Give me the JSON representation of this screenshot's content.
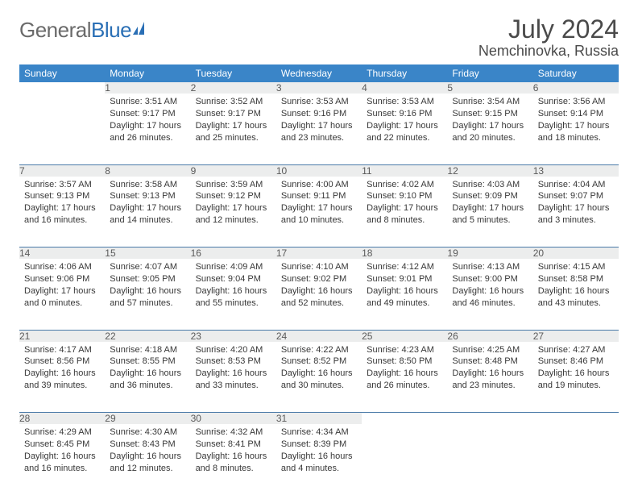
{
  "logo": {
    "text1": "General",
    "text2": "Blue"
  },
  "title": "July 2024",
  "location": "Nemchinovka, Russia",
  "colors": {
    "header_bg": "#3a85c8",
    "header_text": "#ffffff",
    "daynum_bg": "#eceded",
    "daynum_text": "#5a5a5a",
    "body_text": "#383838",
    "rule": "#4a7aa8",
    "logo_gray": "#6a6a6a",
    "logo_blue": "#2a6fb5",
    "title_text": "#4a4a4a",
    "page_bg": "#ffffff"
  },
  "fonts": {
    "family": "Arial, Helvetica, sans-serif",
    "month_title_size": 32,
    "location_size": 18,
    "weekday_size": 12,
    "daynum_size": 12,
    "body_size": 11
  },
  "weekdays": [
    "Sunday",
    "Monday",
    "Tuesday",
    "Wednesday",
    "Thursday",
    "Friday",
    "Saturday"
  ],
  "weeks": [
    [
      {
        "n": "",
        "lines": [
          "",
          "",
          "",
          ""
        ]
      },
      {
        "n": "1",
        "lines": [
          "Sunrise: 3:51 AM",
          "Sunset: 9:17 PM",
          "Daylight: 17 hours",
          "and 26 minutes."
        ]
      },
      {
        "n": "2",
        "lines": [
          "Sunrise: 3:52 AM",
          "Sunset: 9:17 PM",
          "Daylight: 17 hours",
          "and 25 minutes."
        ]
      },
      {
        "n": "3",
        "lines": [
          "Sunrise: 3:53 AM",
          "Sunset: 9:16 PM",
          "Daylight: 17 hours",
          "and 23 minutes."
        ]
      },
      {
        "n": "4",
        "lines": [
          "Sunrise: 3:53 AM",
          "Sunset: 9:16 PM",
          "Daylight: 17 hours",
          "and 22 minutes."
        ]
      },
      {
        "n": "5",
        "lines": [
          "Sunrise: 3:54 AM",
          "Sunset: 9:15 PM",
          "Daylight: 17 hours",
          "and 20 minutes."
        ]
      },
      {
        "n": "6",
        "lines": [
          "Sunrise: 3:56 AM",
          "Sunset: 9:14 PM",
          "Daylight: 17 hours",
          "and 18 minutes."
        ]
      }
    ],
    [
      {
        "n": "7",
        "lines": [
          "Sunrise: 3:57 AM",
          "Sunset: 9:13 PM",
          "Daylight: 17 hours",
          "and 16 minutes."
        ]
      },
      {
        "n": "8",
        "lines": [
          "Sunrise: 3:58 AM",
          "Sunset: 9:13 PM",
          "Daylight: 17 hours",
          "and 14 minutes."
        ]
      },
      {
        "n": "9",
        "lines": [
          "Sunrise: 3:59 AM",
          "Sunset: 9:12 PM",
          "Daylight: 17 hours",
          "and 12 minutes."
        ]
      },
      {
        "n": "10",
        "lines": [
          "Sunrise: 4:00 AM",
          "Sunset: 9:11 PM",
          "Daylight: 17 hours",
          "and 10 minutes."
        ]
      },
      {
        "n": "11",
        "lines": [
          "Sunrise: 4:02 AM",
          "Sunset: 9:10 PM",
          "Daylight: 17 hours",
          "and 8 minutes."
        ]
      },
      {
        "n": "12",
        "lines": [
          "Sunrise: 4:03 AM",
          "Sunset: 9:09 PM",
          "Daylight: 17 hours",
          "and 5 minutes."
        ]
      },
      {
        "n": "13",
        "lines": [
          "Sunrise: 4:04 AM",
          "Sunset: 9:07 PM",
          "Daylight: 17 hours",
          "and 3 minutes."
        ]
      }
    ],
    [
      {
        "n": "14",
        "lines": [
          "Sunrise: 4:06 AM",
          "Sunset: 9:06 PM",
          "Daylight: 17 hours",
          "and 0 minutes."
        ]
      },
      {
        "n": "15",
        "lines": [
          "Sunrise: 4:07 AM",
          "Sunset: 9:05 PM",
          "Daylight: 16 hours",
          "and 57 minutes."
        ]
      },
      {
        "n": "16",
        "lines": [
          "Sunrise: 4:09 AM",
          "Sunset: 9:04 PM",
          "Daylight: 16 hours",
          "and 55 minutes."
        ]
      },
      {
        "n": "17",
        "lines": [
          "Sunrise: 4:10 AM",
          "Sunset: 9:02 PM",
          "Daylight: 16 hours",
          "and 52 minutes."
        ]
      },
      {
        "n": "18",
        "lines": [
          "Sunrise: 4:12 AM",
          "Sunset: 9:01 PM",
          "Daylight: 16 hours",
          "and 49 minutes."
        ]
      },
      {
        "n": "19",
        "lines": [
          "Sunrise: 4:13 AM",
          "Sunset: 9:00 PM",
          "Daylight: 16 hours",
          "and 46 minutes."
        ]
      },
      {
        "n": "20",
        "lines": [
          "Sunrise: 4:15 AM",
          "Sunset: 8:58 PM",
          "Daylight: 16 hours",
          "and 43 minutes."
        ]
      }
    ],
    [
      {
        "n": "21",
        "lines": [
          "Sunrise: 4:17 AM",
          "Sunset: 8:56 PM",
          "Daylight: 16 hours",
          "and 39 minutes."
        ]
      },
      {
        "n": "22",
        "lines": [
          "Sunrise: 4:18 AM",
          "Sunset: 8:55 PM",
          "Daylight: 16 hours",
          "and 36 minutes."
        ]
      },
      {
        "n": "23",
        "lines": [
          "Sunrise: 4:20 AM",
          "Sunset: 8:53 PM",
          "Daylight: 16 hours",
          "and 33 minutes."
        ]
      },
      {
        "n": "24",
        "lines": [
          "Sunrise: 4:22 AM",
          "Sunset: 8:52 PM",
          "Daylight: 16 hours",
          "and 30 minutes."
        ]
      },
      {
        "n": "25",
        "lines": [
          "Sunrise: 4:23 AM",
          "Sunset: 8:50 PM",
          "Daylight: 16 hours",
          "and 26 minutes."
        ]
      },
      {
        "n": "26",
        "lines": [
          "Sunrise: 4:25 AM",
          "Sunset: 8:48 PM",
          "Daylight: 16 hours",
          "and 23 minutes."
        ]
      },
      {
        "n": "27",
        "lines": [
          "Sunrise: 4:27 AM",
          "Sunset: 8:46 PM",
          "Daylight: 16 hours",
          "and 19 minutes."
        ]
      }
    ],
    [
      {
        "n": "28",
        "lines": [
          "Sunrise: 4:29 AM",
          "Sunset: 8:45 PM",
          "Daylight: 16 hours",
          "and 16 minutes."
        ]
      },
      {
        "n": "29",
        "lines": [
          "Sunrise: 4:30 AM",
          "Sunset: 8:43 PM",
          "Daylight: 16 hours",
          "and 12 minutes."
        ]
      },
      {
        "n": "30",
        "lines": [
          "Sunrise: 4:32 AM",
          "Sunset: 8:41 PM",
          "Daylight: 16 hours",
          "and 8 minutes."
        ]
      },
      {
        "n": "31",
        "lines": [
          "Sunrise: 4:34 AM",
          "Sunset: 8:39 PM",
          "Daylight: 16 hours",
          "and 4 minutes."
        ]
      },
      {
        "n": "",
        "lines": [
          "",
          "",
          "",
          ""
        ]
      },
      {
        "n": "",
        "lines": [
          "",
          "",
          "",
          ""
        ]
      },
      {
        "n": "",
        "lines": [
          "",
          "",
          "",
          ""
        ]
      }
    ]
  ]
}
